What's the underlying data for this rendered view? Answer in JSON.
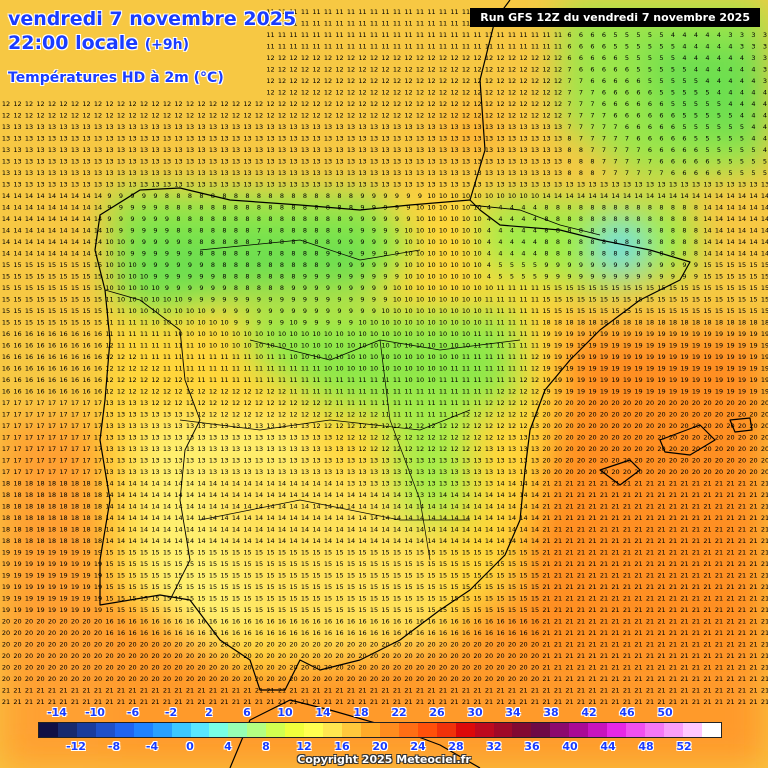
{
  "header": {
    "date_line": "vendredi 7 novembre 2025",
    "time_line": "22:00 locale",
    "time_offset": "(+9h)",
    "parameter": "Températures HD à 2m (°C)",
    "run_info": "Run GFS 12Z du vendredi 7 novembre 2025"
  },
  "legend": {
    "upper_labels": [
      "-14",
      "-10",
      "-6",
      "-2",
      "2",
      "6",
      "10",
      "14",
      "18",
      "22",
      "26",
      "30",
      "34",
      "38",
      "42",
      "46",
      "50"
    ],
    "lower_labels": [
      "-12",
      "-8",
      "-4",
      "0",
      "4",
      "8",
      "12",
      "16",
      "20",
      "24",
      "28",
      "32",
      "36",
      "40",
      "44",
      "48",
      "52"
    ],
    "colors": [
      "#101045",
      "#182a6e",
      "#1a3c9c",
      "#1e50c8",
      "#1e64f0",
      "#1e82ff",
      "#28a0ff",
      "#3cc8ff",
      "#5ae6ff",
      "#78ffe6",
      "#96ffb4",
      "#b4ff82",
      "#d2ff50",
      "#f0ff3c",
      "#ffff50",
      "#ffe650",
      "#ffc83c",
      "#ffaa28",
      "#ff8c1e",
      "#ff6e14",
      "#ff500a",
      "#f0320a",
      "#dc0a0a",
      "#be0a1e",
      "#a00a28",
      "#820a32",
      "#6e0a46",
      "#8c0a6e",
      "#aa0a96",
      "#c814be",
      "#e628e6",
      "#f050f0",
      "#f578f5",
      "#fa9ffa",
      "#ffc8ff",
      "#ffffff"
    ]
  },
  "map": {
    "region": "Iberian Peninsula",
    "overlay": "2m temperature grid values (°C)",
    "color_scale_note": "temperature shading"
  },
  "footer": {
    "copyright": "Copyright 2025 Meteociel.fr"
  }
}
